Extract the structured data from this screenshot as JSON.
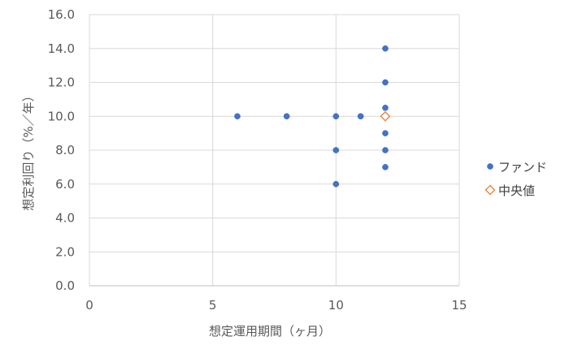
{
  "chart_data": {
    "type": "scatter",
    "xlabel": "想定運用期間（ヶ月）",
    "ylabel": "想定利回り（%／年）",
    "xlim": [
      0,
      15
    ],
    "ylim": [
      0,
      16
    ],
    "x_ticks": [
      0,
      5,
      10,
      15
    ],
    "x_tick_labels": [
      "0",
      "5",
      "10",
      "15"
    ],
    "y_ticks": [
      0,
      2,
      4,
      6,
      8,
      10,
      12,
      14,
      16
    ],
    "y_tick_labels": [
      "0.0",
      "2.0",
      "4.0",
      "6.0",
      "8.0",
      "10.0",
      "12.0",
      "14.0",
      "16.0"
    ],
    "grid": true,
    "legend_position": "right",
    "series": [
      {
        "name": "ファンド",
        "marker": "circle",
        "color": "#4472C4",
        "points": [
          {
            "x": 6,
            "y": 10.0
          },
          {
            "x": 8,
            "y": 10.0
          },
          {
            "x": 10,
            "y": 10.0
          },
          {
            "x": 10,
            "y": 8.0
          },
          {
            "x": 10,
            "y": 6.0
          },
          {
            "x": 11,
            "y": 10.0
          },
          {
            "x": 12,
            "y": 14.0
          },
          {
            "x": 12,
            "y": 12.0
          },
          {
            "x": 12,
            "y": 10.5
          },
          {
            "x": 12,
            "y": 10.0
          },
          {
            "x": 12,
            "y": 9.0
          },
          {
            "x": 12,
            "y": 8.0
          },
          {
            "x": 12,
            "y": 7.0
          }
        ]
      },
      {
        "name": "中央値",
        "marker": "diamond",
        "color": "#ED7D31",
        "points": [
          {
            "x": 12,
            "y": 10.0
          }
        ]
      }
    ]
  }
}
